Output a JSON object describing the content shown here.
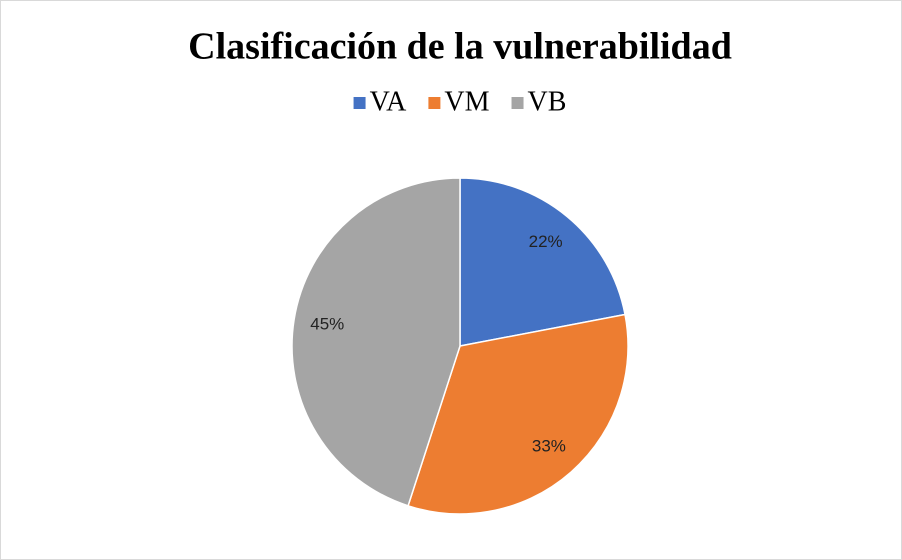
{
  "chart_data": {
    "type": "pie",
    "title": "Clasificación de la vulnerabilidad",
    "categories": [
      "VA",
      "VM",
      "VB"
    ],
    "values": [
      22,
      33,
      45
    ],
    "value_labels": [
      "22%",
      "33%",
      "45%"
    ],
    "colors": [
      "#4472c4",
      "#ed7d31",
      "#a5a5a5"
    ],
    "legend": "top"
  }
}
